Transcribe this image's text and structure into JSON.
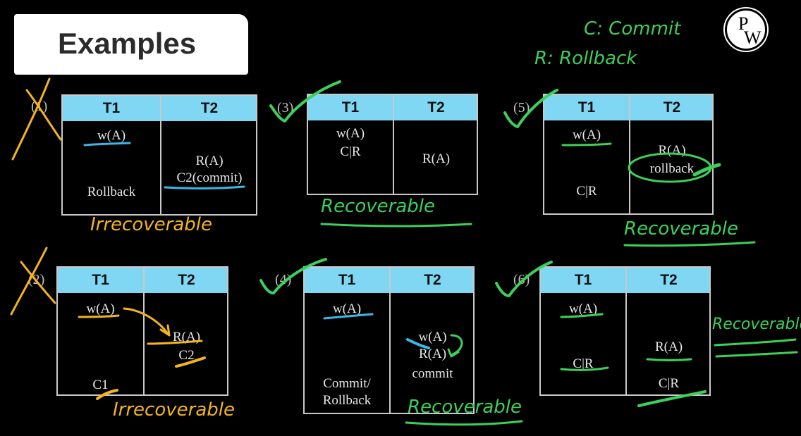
{
  "header": {
    "title": "Examples"
  },
  "logo": {
    "top": "P",
    "bottom": "W"
  },
  "legend": {
    "commit": "C: Commit",
    "rollback": "R: Rollback"
  },
  "examples": [
    {
      "num": "(1)",
      "h1": "T1",
      "h2": "T2",
      "c1": [
        "w(A)",
        "Rollback"
      ],
      "c2": [
        "R(A)",
        "C2(commit)"
      ],
      "verdict": "Irrecoverable"
    },
    {
      "num": "(3)",
      "h1": "T1",
      "h2": "T2",
      "c1": [
        "w(A)",
        "C|R"
      ],
      "c2": [
        "R(A)"
      ],
      "verdict": "Recoverable"
    },
    {
      "num": "(5)",
      "h1": "T1",
      "h2": "T2",
      "c1": [
        "w(A)",
        "C|R"
      ],
      "c2": [
        "R(A)",
        "rollback"
      ],
      "verdict": "Recoverable"
    },
    {
      "num": "(2)",
      "h1": "T1",
      "h2": "T2",
      "c1": [
        "w(A)",
        "C1"
      ],
      "c2": [
        "R(A)",
        "C2"
      ],
      "verdict": "Irrecoverable"
    },
    {
      "num": "(4)",
      "h1": "T1",
      "h2": "T2",
      "c1": [
        "w(A)",
        "Commit/",
        "Rollback"
      ],
      "c2": [
        "w(A)",
        "R(A)",
        "commit"
      ],
      "verdict": "Recoverable"
    },
    {
      "num": "(6)",
      "h1": "T1",
      "h2": "T2",
      "c1": [
        "w(A)",
        "C|R"
      ],
      "c2": [
        "R(A)",
        "C|R"
      ],
      "verdict": "Recoverable"
    }
  ],
  "colors": {
    "header_bg": "#7fd7f4",
    "green_ink": "#3dd05a",
    "orange_ink": "#f5b41f",
    "cyan_ink": "#3ab8e8"
  }
}
